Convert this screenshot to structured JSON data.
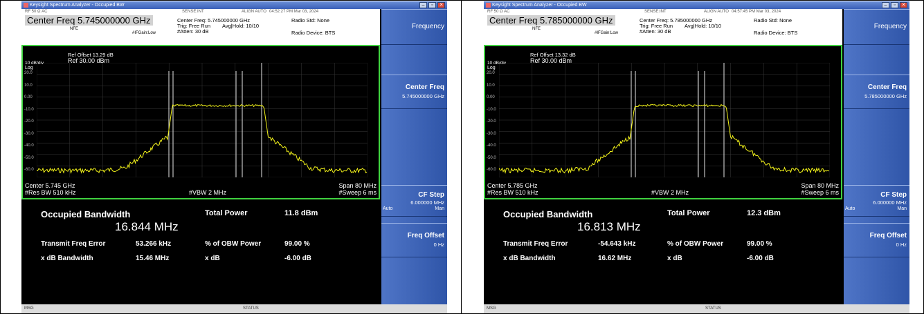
{
  "panels": [
    {
      "window_title": "Keysight Spectrum Analyzer - Occupied BW",
      "header": {
        "center_freq": "Center Freq 5.745000000 GHz",
        "nfe": "NFE",
        "center_freq_small": "Center Freq: 5.745000000 GHz",
        "trig": "Trig: Free Run",
        "avg_hold": "Avg|Hold: 10/10",
        "atten": "#Atten: 30 dB",
        "gate": "#IFGain:Low",
        "radio_std": "Radio Std: None",
        "radio_device": "Radio Device: BTS",
        "sense": "SENSE:INT",
        "align": "ALIGN AUTO",
        "datetime": "04:52:27 PM Mar 03, 2024",
        "tiny_left": "RF   50 Ω  AC"
      },
      "plot": {
        "ref_offset": "Ref Offset 13.29 dB",
        "ref_level": "Ref 30.00 dBm",
        "scale": "10 dB/div",
        "log": "Log",
        "y_ticks": [
          "20.0",
          "10.0",
          "0.00",
          "-10.0",
          "-20.0",
          "-30.0",
          "-40.0",
          "-50.0",
          "-60.0"
        ],
        "center": "Center 5.745 GHz",
        "span": "Span 80 MHz",
        "res_bw": "#Res BW 510 kHz",
        "vbw": "#VBW 2 MHz",
        "sweep": "#Sweep 6 ms"
      },
      "results": {
        "obw_label": "Occupied Bandwidth",
        "obw_value": "16.844 MHz",
        "total_power_label": "Total Power",
        "total_power_value": "11.8 dBm",
        "tfe_label": "Transmit Freq Error",
        "tfe_value": "53.266 kHz",
        "obw_power_label": "% of OBW Power",
        "obw_power_value": "99.00 %",
        "xdb_bw_label": "x dB Bandwidth",
        "xdb_bw_value": "15.46 MHz",
        "xdb_label": "x dB",
        "xdb_value": "-6.00 dB"
      },
      "softkeys": {
        "menu_title": "Frequency",
        "center_freq_label": "Center Freq",
        "center_freq_value": "5.745000000 GHz",
        "cf_step_label": "CF Step",
        "cf_step_value": "6.000000 MHz",
        "auto": "Auto",
        "man": "Man",
        "freq_offset_label": "Freq Offset",
        "freq_offset_value": "0 Hz"
      },
      "status": {
        "left": "MSG",
        "mid": "STATUS"
      }
    },
    {
      "window_title": "Keysight Spectrum Analyzer - Occupied BW",
      "header": {
        "center_freq": "Center Freq 5.785000000 GHz",
        "nfe": "NFE",
        "center_freq_small": "Center Freq: 5.785000000 GHz",
        "trig": "Trig: Free Run",
        "avg_hold": "Avg|Hold: 10/10",
        "atten": "#Atten: 30 dB",
        "gate": "#IFGain:Low",
        "radio_std": "Radio Std: None",
        "radio_device": "Radio Device: BTS",
        "sense": "SENSE:INT",
        "align": "ALIGN AUTO",
        "datetime": "04:57:45 PM Mar 03, 2024",
        "tiny_left": "RF   50 Ω  AC"
      },
      "plot": {
        "ref_offset": "Ref Offset 13.32 dB",
        "ref_level": "Ref 30.00 dBm",
        "scale": "10 dB/div",
        "log": "Log",
        "y_ticks": [
          "20.0",
          "10.0",
          "0.00",
          "-10.0",
          "-20.0",
          "-30.0",
          "-40.0",
          "-50.0",
          "-60.0"
        ],
        "center": "Center 5.785 GHz",
        "span": "Span 80 MHz",
        "res_bw": "#Res BW 510 kHz",
        "vbw": "#VBW 2 MHz",
        "sweep": "#Sweep 6 ms"
      },
      "results": {
        "obw_label": "Occupied Bandwidth",
        "obw_value": "16.813 MHz",
        "total_power_label": "Total Power",
        "total_power_value": "12.3 dBm",
        "tfe_label": "Transmit Freq Error",
        "tfe_value": "-54.643 kHz",
        "obw_power_label": "% of OBW Power",
        "obw_power_value": "99.00 %",
        "xdb_bw_label": "x dB Bandwidth",
        "xdb_bw_value": "16.62 MHz",
        "xdb_label": "x dB",
        "xdb_value": "-6.00 dB"
      },
      "softkeys": {
        "menu_title": "Frequency",
        "center_freq_label": "Center Freq",
        "center_freq_value": "5.785000000 GHz",
        "cf_step_label": "CF Step",
        "cf_step_value": "6.000000 MHz",
        "auto": "Auto",
        "man": "Man",
        "freq_offset_label": "Freq Offset",
        "freq_offset_value": "0 Hz"
      },
      "status": {
        "left": "MSG",
        "mid": "STATUS"
      }
    }
  ],
  "colors": {
    "trace": "#f2f21a",
    "plot_border": "#3fd23f",
    "softkey": "#3f66bb"
  }
}
